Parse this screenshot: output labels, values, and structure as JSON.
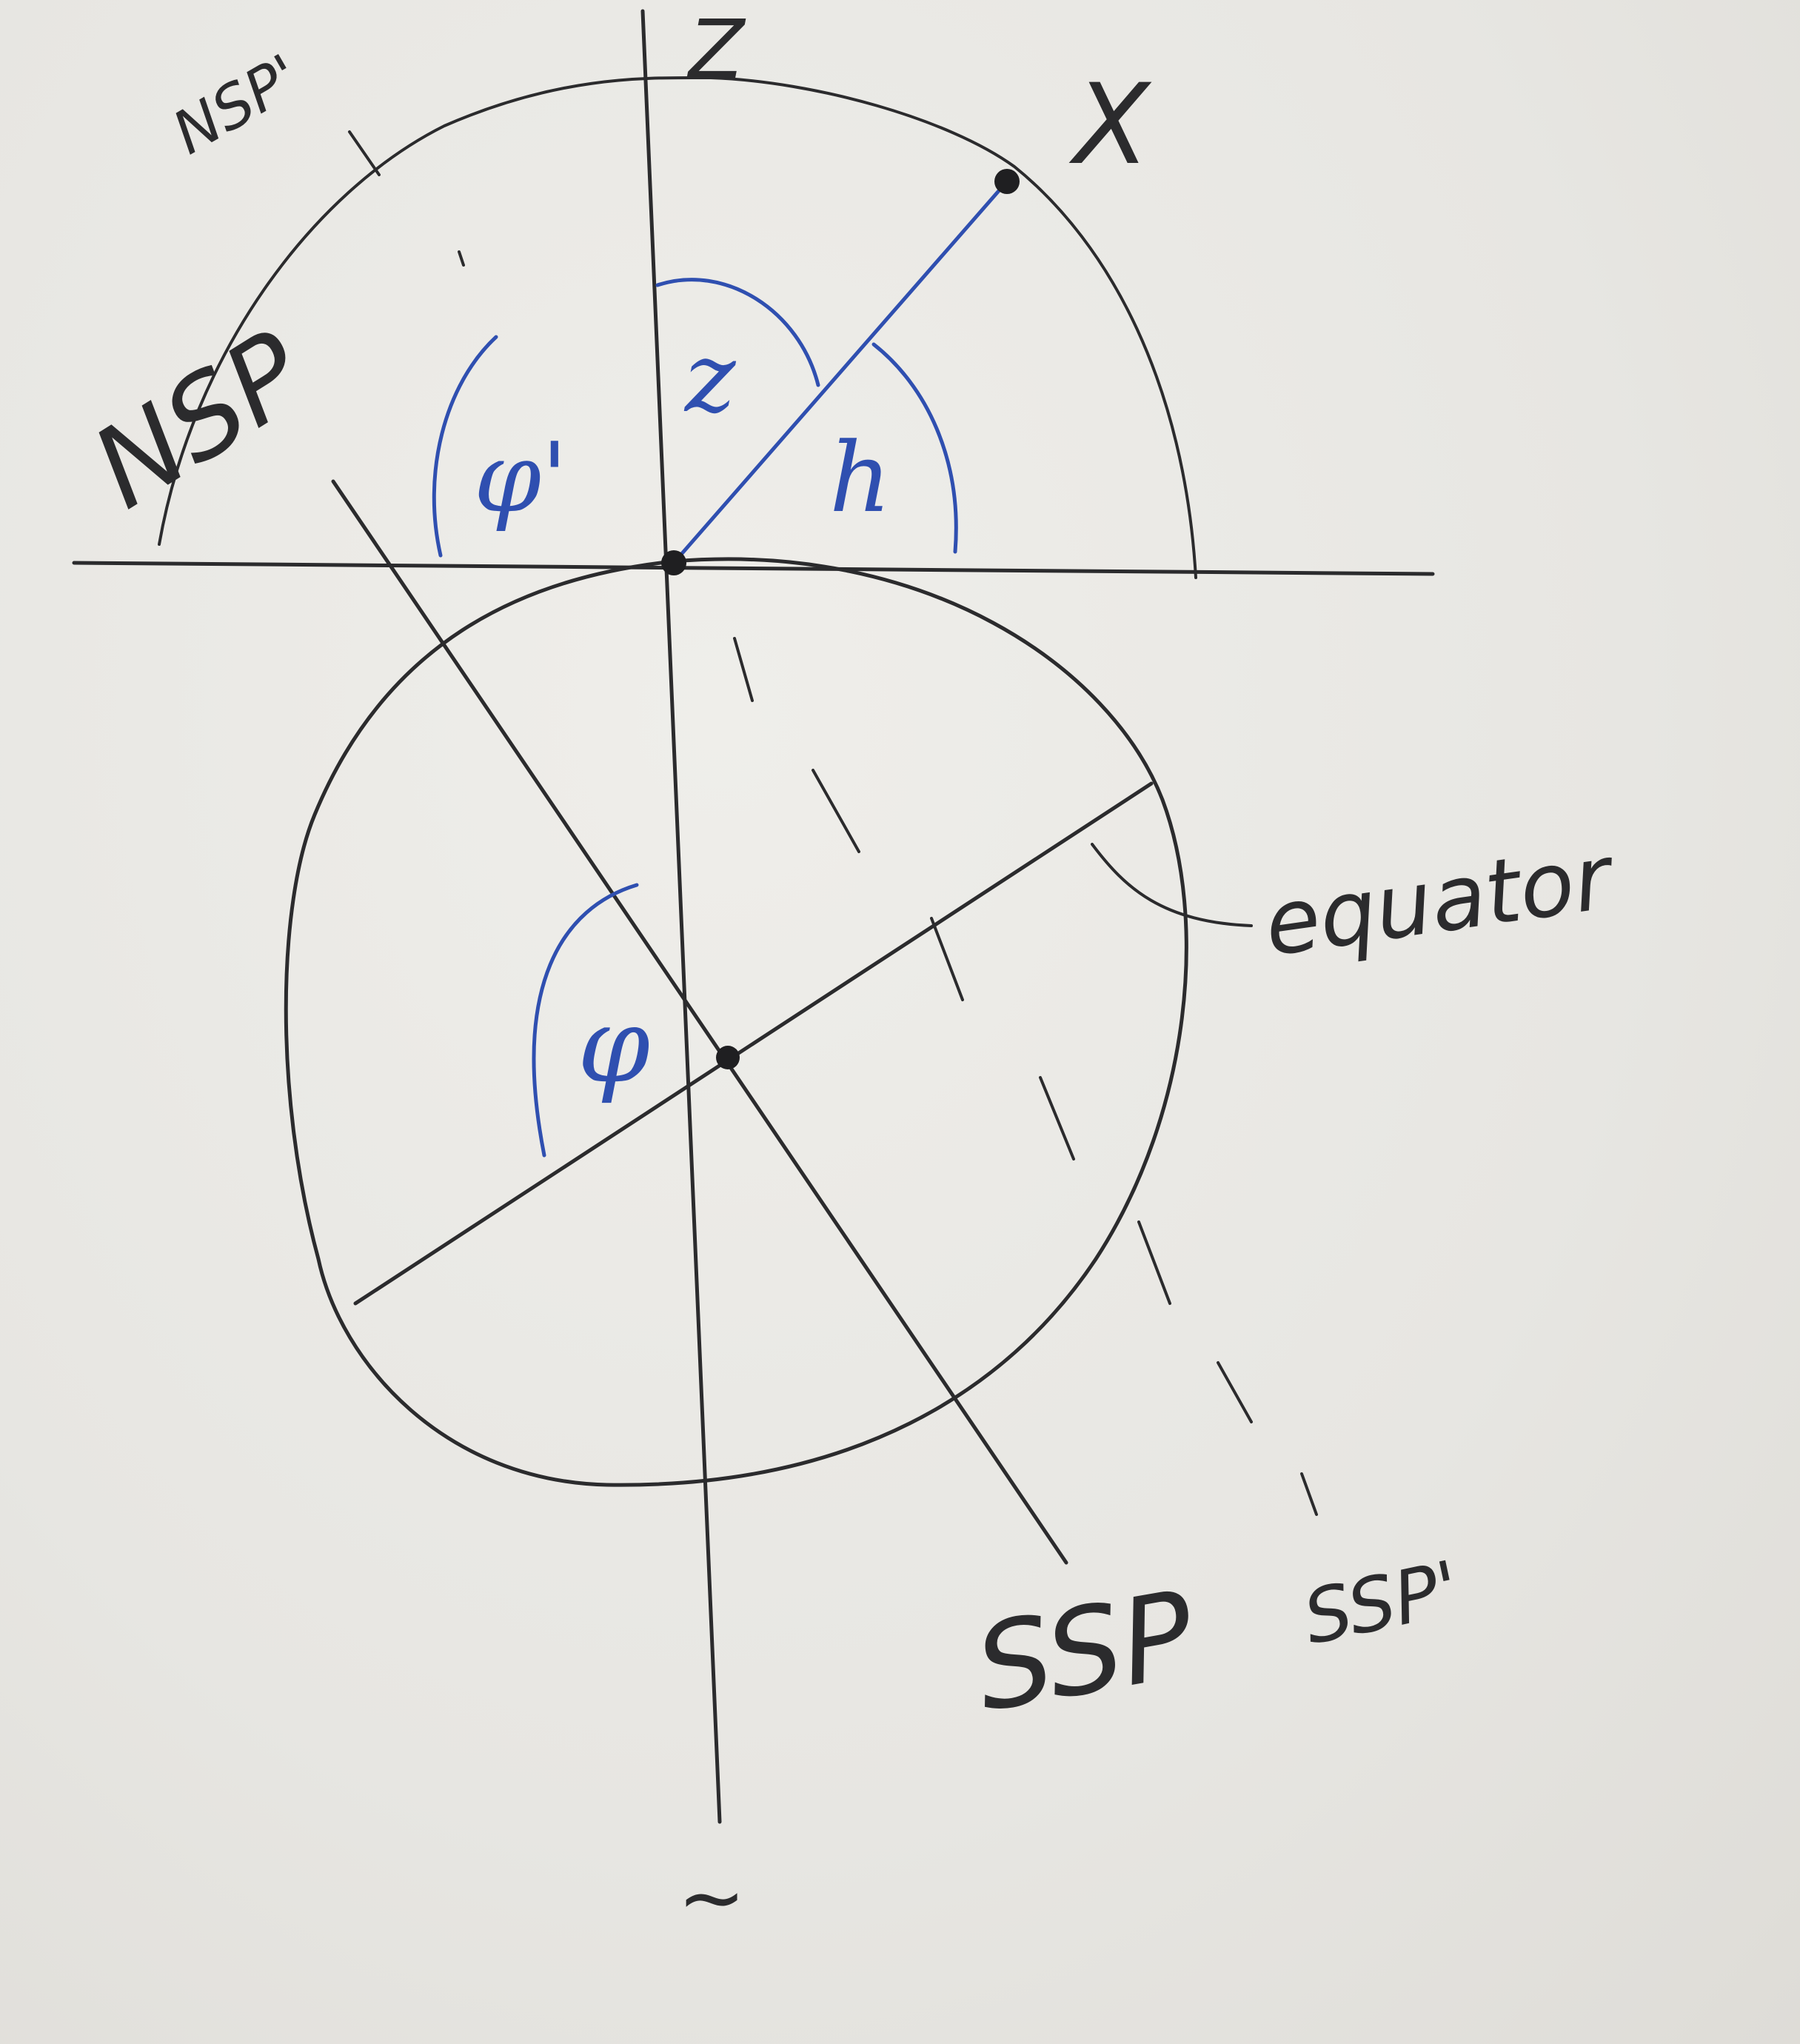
{
  "labels": {
    "zenith": "Z",
    "star": "X",
    "nsp_prime": "NSP'",
    "nsp": "NSP",
    "zenith_angle": "z",
    "altitude": "h",
    "phi_prime": "φ'",
    "phi": "φ",
    "equator": "equator",
    "ssp": "SSP",
    "ssp_prime": "SSP'",
    "nadir": "~"
  },
  "colors": {
    "ink": "#2b2b2d",
    "blue_ink": "#2f4fb0",
    "paper": "#e9e8e4"
  }
}
